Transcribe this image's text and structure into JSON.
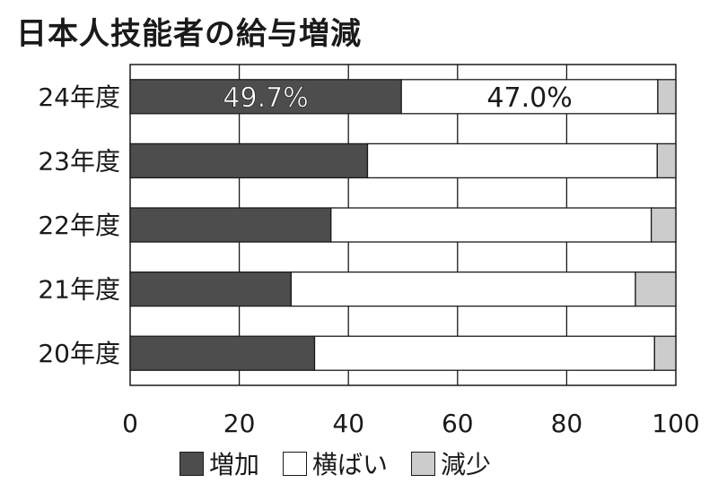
{
  "chart_data": {
    "type": "bar",
    "orientation": "horizontal",
    "stacked": true,
    "title": "日本人技能者の給与増減",
    "categories": [
      "24年度",
      "23年度",
      "22年度",
      "21年度",
      "20年度"
    ],
    "series": [
      {
        "name": "増加",
        "color": "#4d4d4d",
        "values": [
          49.7,
          43.5,
          36.8,
          29.5,
          33.8
        ]
      },
      {
        "name": "横ばい",
        "color": "#ffffff",
        "values": [
          47.0,
          53.1,
          58.7,
          63.1,
          62.3
        ]
      },
      {
        "name": "減少",
        "color": "#cccccc",
        "values": [
          3.3,
          3.4,
          4.5,
          7.4,
          3.9
        ]
      }
    ],
    "data_labels": [
      "49.7%",
      "47.0%"
    ],
    "xlim": [
      0,
      100
    ],
    "xticks": [
      "0",
      "20",
      "40",
      "60",
      "80",
      "100"
    ],
    "grid": true,
    "legend_position": "bottom"
  }
}
